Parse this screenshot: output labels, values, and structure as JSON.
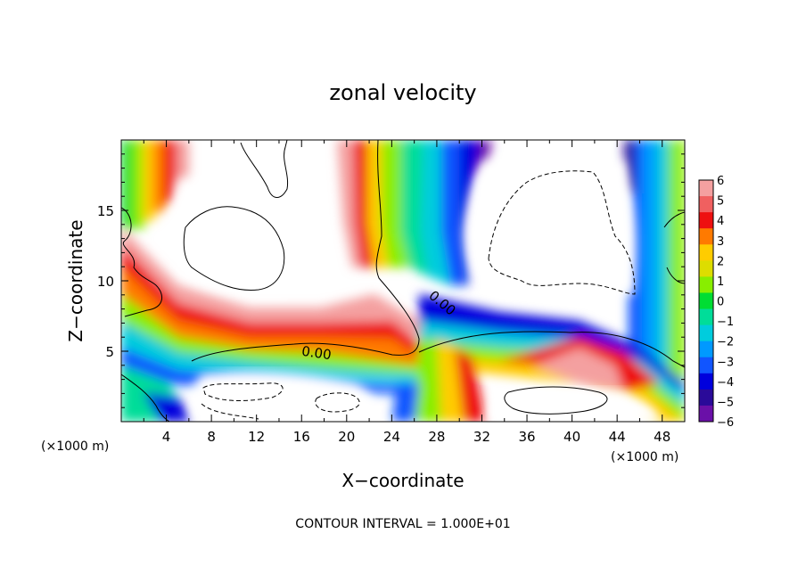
{
  "chart_data": {
    "type": "heatmap",
    "title": "zonal velocity",
    "xlabel": "X−coordinate",
    "ylabel": "Z−coordinate",
    "x_unit": "(×1000 m)",
    "y_unit": "(×1000 m)",
    "xlim": [
      0,
      50
    ],
    "ylim": [
      0,
      20
    ],
    "x_ticks": [
      "4",
      "8",
      "12",
      "16",
      "20",
      "24",
      "28",
      "32",
      "36",
      "40",
      "44",
      "48"
    ],
    "y_ticks": [
      "5",
      "10",
      "15"
    ],
    "colorbar": {
      "labels": [
        "6",
        "5",
        "4",
        "3",
        "2",
        "1",
        "0",
        "−1",
        "−2",
        "−3",
        "−4",
        "−5",
        "−6"
      ],
      "range": [
        -6,
        6
      ],
      "colors": [
        "#f4a0a0",
        "#f06060",
        "#ee1010",
        "#ff7a00",
        "#ffcc00",
        "#dddd00",
        "#88ee00",
        "#00dd33",
        "#00dd99",
        "#00ccdd",
        "#0099ff",
        "#1155ff",
        "#0000dd",
        "#2a0a99",
        "#6a10a8"
      ]
    },
    "contour_labels": [
      "0.00",
      "0.00"
    ],
    "footer": "CONTOUR INTERVAL = 1.000E+01"
  }
}
